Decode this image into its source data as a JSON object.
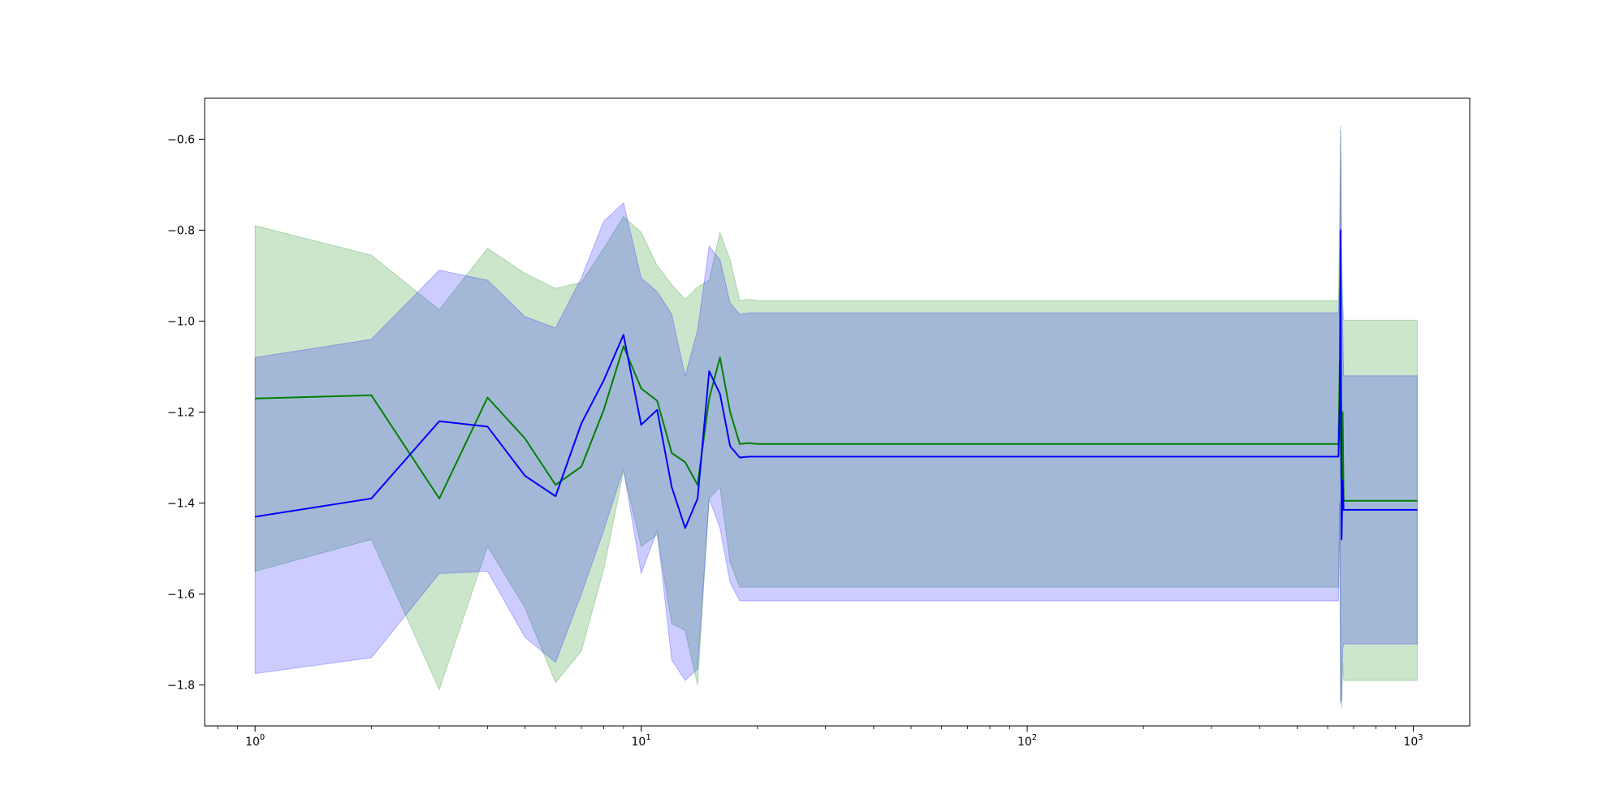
{
  "chart_data": {
    "type": "line",
    "title": "",
    "xlabel": "",
    "ylabel": "",
    "x_scale": "log",
    "xlim": [
      0.74,
      1400
    ],
    "ylim": [
      -1.89,
      -0.51
    ],
    "grid": false,
    "legend": "none",
    "x_ticks": [
      {
        "value": 1,
        "base": "10",
        "exp": "0"
      },
      {
        "value": 10,
        "base": "10",
        "exp": "1"
      },
      {
        "value": 100,
        "base": "10",
        "exp": "2"
      },
      {
        "value": 1000,
        "base": "10",
        "exp": "3"
      }
    ],
    "y_ticks": [
      {
        "value": -0.6,
        "label": "−0.6"
      },
      {
        "value": -0.8,
        "label": "−0.8"
      },
      {
        "value": -1.0,
        "label": "−1.0"
      },
      {
        "value": -1.2,
        "label": "−1.2"
      },
      {
        "value": -1.4,
        "label": "−1.4"
      },
      {
        "value": -1.6,
        "label": "−1.6"
      },
      {
        "value": -1.8,
        "label": "−1.8"
      }
    ],
    "series": [
      {
        "color": "#008000",
        "band_color": "#008000",
        "x": [
          1,
          2,
          3,
          4,
          5,
          6,
          7,
          8,
          9,
          10,
          11,
          12,
          13,
          14,
          15,
          16,
          17,
          18,
          19,
          20,
          640,
          645,
          648,
          652,
          656,
          660,
          1024
        ],
        "y": [
          -1.17,
          -1.163,
          -1.39,
          -1.168,
          -1.258,
          -1.36,
          -1.32,
          -1.195,
          -1.055,
          -1.148,
          -1.175,
          -1.29,
          -1.31,
          -1.36,
          -1.17,
          -1.08,
          -1.2,
          -1.27,
          -1.268,
          -1.27,
          -1.27,
          -1.09,
          -1.25,
          -1.38,
          -1.2,
          -1.395,
          -1.395
        ],
        "lower": [
          -1.55,
          -1.48,
          -1.81,
          -1.495,
          -1.63,
          -1.795,
          -1.725,
          -1.545,
          -1.33,
          -1.495,
          -1.47,
          -1.665,
          -1.68,
          -1.8,
          -1.39,
          -1.365,
          -1.53,
          -1.585,
          -1.585,
          -1.585,
          -1.585,
          -1.4,
          -1.82,
          -1.85,
          -1.75,
          -1.79,
          -1.79
        ],
        "upper": [
          -0.79,
          -0.855,
          -0.975,
          -0.84,
          -0.895,
          -0.928,
          -0.915,
          -0.84,
          -0.77,
          -0.805,
          -0.878,
          -0.92,
          -0.952,
          -0.925,
          -0.91,
          -0.805,
          -0.865,
          -0.955,
          -0.952,
          -0.955,
          -0.955,
          -0.75,
          -0.57,
          -0.86,
          -0.95,
          -0.998,
          -0.998
        ]
      },
      {
        "color": "#0000ff",
        "band_color": "#0000ff",
        "x": [
          1,
          2,
          3,
          4,
          5,
          6,
          7,
          8,
          9,
          10,
          11,
          12,
          13,
          14,
          15,
          16,
          17,
          18,
          19,
          20,
          640,
          645,
          648,
          652,
          656,
          660,
          1024
        ],
        "y": [
          -1.43,
          -1.39,
          -1.22,
          -1.232,
          -1.34,
          -1.385,
          -1.225,
          -1.13,
          -1.03,
          -1.228,
          -1.195,
          -1.365,
          -1.455,
          -1.39,
          -1.11,
          -1.16,
          -1.275,
          -1.3,
          -1.298,
          -1.298,
          -1.298,
          -1.18,
          -0.8,
          -1.48,
          -1.35,
          -1.415,
          -1.415
        ],
        "lower": [
          -1.775,
          -1.74,
          -1.555,
          -1.55,
          -1.695,
          -1.75,
          -1.6,
          -1.46,
          -1.325,
          -1.555,
          -1.46,
          -1.745,
          -1.79,
          -1.765,
          -1.39,
          -1.455,
          -1.575,
          -1.615,
          -1.615,
          -1.615,
          -1.615,
          -1.4,
          -1.84,
          -1.83,
          -1.72,
          -1.71,
          -1.71
        ],
        "upper": [
          -1.08,
          -1.04,
          -0.888,
          -0.91,
          -0.99,
          -1.015,
          -0.905,
          -0.78,
          -0.74,
          -0.905,
          -0.935,
          -0.985,
          -1.12,
          -1.02,
          -0.835,
          -0.865,
          -0.96,
          -0.985,
          -0.982,
          -0.982,
          -0.982,
          -0.9,
          -0.58,
          -0.9,
          -1.0,
          -1.12,
          -1.12
        ]
      }
    ]
  }
}
